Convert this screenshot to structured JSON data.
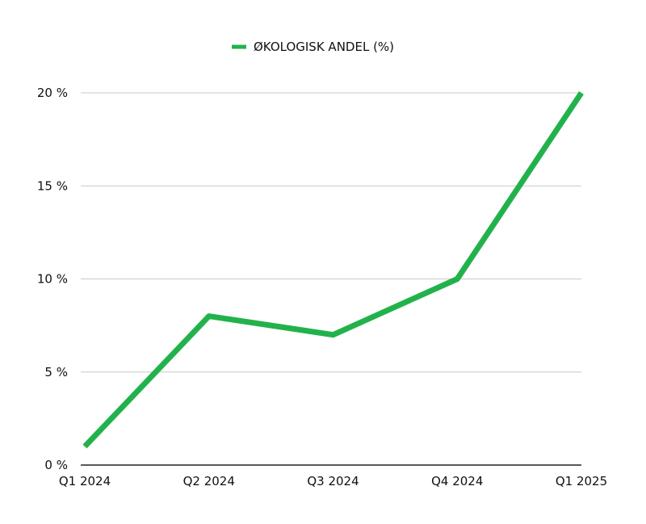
{
  "chart_data": {
    "type": "line",
    "categories": [
      "Q1 2024",
      "Q2 2024",
      "Q3 2024",
      "Q4 2024",
      "Q1 2025"
    ],
    "series": [
      {
        "name": "ØKOLOGISK ANDEL (%)",
        "values": [
          1,
          8,
          7,
          10,
          20
        ],
        "color": "#22b24c"
      }
    ],
    "ylim": [
      0,
      20
    ],
    "yticks": [
      0,
      5,
      10,
      15,
      20
    ],
    "ytick_labels": [
      "0 %",
      "5 %",
      "10 %",
      "15 %",
      "20 %"
    ],
    "grid": true,
    "legend_position": "top-center"
  }
}
